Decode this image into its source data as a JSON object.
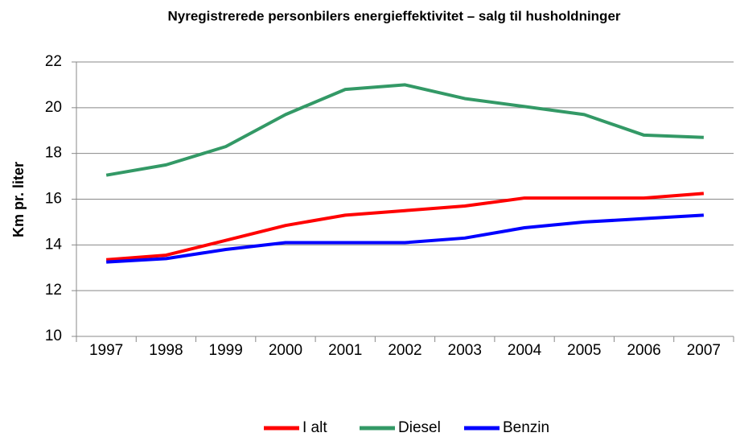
{
  "chart_data": {
    "type": "line",
    "title": "Nyregistrerede personbilers energieffektivitet – salg til husholdninger",
    "y_label": "Km pr. liter",
    "categories": [
      "1997",
      "1998",
      "1999",
      "2000",
      "2001",
      "2002",
      "2003",
      "2004",
      "2005",
      "2006",
      "2007"
    ],
    "series": [
      {
        "name": "I alt",
        "color": "#ff0000",
        "values": [
          13.35,
          13.55,
          14.2,
          14.85,
          15.3,
          15.5,
          15.7,
          16.05,
          16.05,
          16.05,
          16.25
        ]
      },
      {
        "name": "Diesel",
        "color": "#339966",
        "values": [
          17.05,
          17.5,
          18.3,
          19.7,
          20.8,
          21.0,
          20.4,
          20.05,
          19.7,
          18.8,
          18.7
        ]
      },
      {
        "name": "Benzin",
        "color": "#0000ff",
        "values": [
          13.25,
          13.4,
          13.8,
          14.1,
          14.1,
          14.1,
          14.3,
          14.75,
          15.0,
          15.15,
          15.3
        ]
      }
    ],
    "ylim": [
      10,
      22
    ],
    "yticks": [
      10,
      12,
      14,
      16,
      18,
      20,
      22
    ],
    "grid": true,
    "legend": "bottom"
  }
}
